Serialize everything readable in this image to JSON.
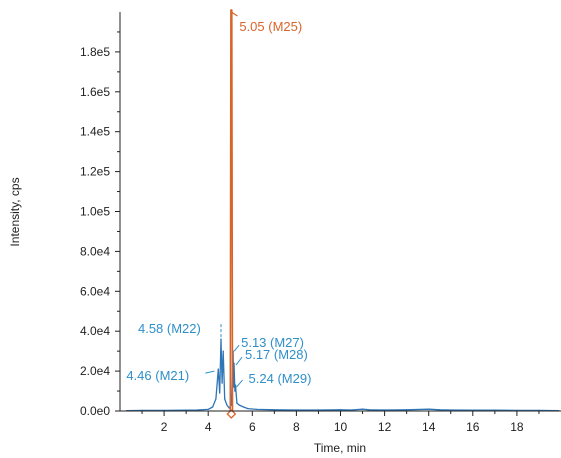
{
  "chart_data": {
    "type": "line",
    "xlabel": "Time, min",
    "ylabel": "Intensity, cps",
    "xlim": [
      0,
      20
    ],
    "ylim": [
      0,
      200000
    ],
    "x_ticks": [
      2,
      4,
      6,
      8,
      10,
      12,
      14,
      16,
      18
    ],
    "y_ticks": [
      {
        "value": 0,
        "label": "0.0e0"
      },
      {
        "value": 20000,
        "label": "2.0e4"
      },
      {
        "value": 40000,
        "label": "4.0e4"
      },
      {
        "value": 60000,
        "label": "6.0e4"
      },
      {
        "value": 80000,
        "label": "8.0e4"
      },
      {
        "value": 100000,
        "label": "1.0e5"
      },
      {
        "value": 120000,
        "label": "1.2e5"
      },
      {
        "value": 140000,
        "label": "1.4e5"
      },
      {
        "value": 160000,
        "label": "1.6e5"
      },
      {
        "value": 180000,
        "label": "1.8e5"
      }
    ],
    "series": [
      {
        "color": "#2e75b6",
        "points": [
          [
            0.3,
            200
          ],
          [
            1.0,
            300
          ],
          [
            2.0,
            300
          ],
          [
            3.0,
            400
          ],
          [
            3.5,
            500
          ],
          [
            4.0,
            800
          ],
          [
            4.2,
            2000
          ],
          [
            4.35,
            6000
          ],
          [
            4.46,
            21000
          ],
          [
            4.52,
            9000
          ],
          [
            4.58,
            36000
          ],
          [
            4.63,
            14000
          ],
          [
            4.68,
            30000
          ],
          [
            4.75,
            6000
          ],
          [
            4.85,
            3000
          ],
          [
            4.95,
            1500
          ],
          [
            5.05,
            3000
          ],
          [
            5.13,
            30000
          ],
          [
            5.15,
            12000
          ],
          [
            5.17,
            24000
          ],
          [
            5.21,
            10000
          ],
          [
            5.24,
            13000
          ],
          [
            5.3,
            4000
          ],
          [
            5.4,
            3000
          ],
          [
            5.6,
            2000
          ],
          [
            5.8,
            1200
          ],
          [
            6.2,
            800
          ],
          [
            7.0,
            600
          ],
          [
            8.0,
            500
          ],
          [
            9.0,
            500
          ],
          [
            10.0,
            600
          ],
          [
            10.5,
            500
          ],
          [
            11.0,
            900
          ],
          [
            11.3,
            600
          ],
          [
            12.0,
            500
          ],
          [
            13.0,
            600
          ],
          [
            14.0,
            900
          ],
          [
            14.5,
            600
          ],
          [
            15.0,
            500
          ],
          [
            16.0,
            400
          ],
          [
            17.0,
            400
          ],
          [
            18.0,
            300
          ],
          [
            19.0,
            300
          ],
          [
            19.9,
            200
          ]
        ]
      },
      {
        "color": "#d9642a",
        "points": [
          [
            4.97,
            0
          ],
          [
            5.0,
            0
          ],
          [
            5.03,
            205000
          ],
          [
            5.07,
            205000
          ],
          [
            5.1,
            0
          ],
          [
            5.13,
            0
          ]
        ]
      }
    ],
    "annotations": [
      {
        "text": "5.05 (M25)",
        "x": 5.05,
        "y": 205000,
        "color": "#d9642a"
      },
      {
        "text": "4.58 (M22)",
        "x": 4.58,
        "y": 36000,
        "color": "#2e8fc9"
      },
      {
        "text": "5.13 (M27)",
        "x": 5.13,
        "y": 30000,
        "color": "#2e8fc9"
      },
      {
        "text": "5.17 (M28)",
        "x": 5.17,
        "y": 24000,
        "color": "#2e8fc9"
      },
      {
        "text": "4.46 (M21)",
        "x": 4.46,
        "y": 21000,
        "color": "#2e8fc9"
      },
      {
        "text": "5.24 (M29)",
        "x": 5.24,
        "y": 13000,
        "color": "#2e8fc9"
      }
    ],
    "marker": {
      "x": 5.05,
      "color": "#d9642a"
    }
  }
}
